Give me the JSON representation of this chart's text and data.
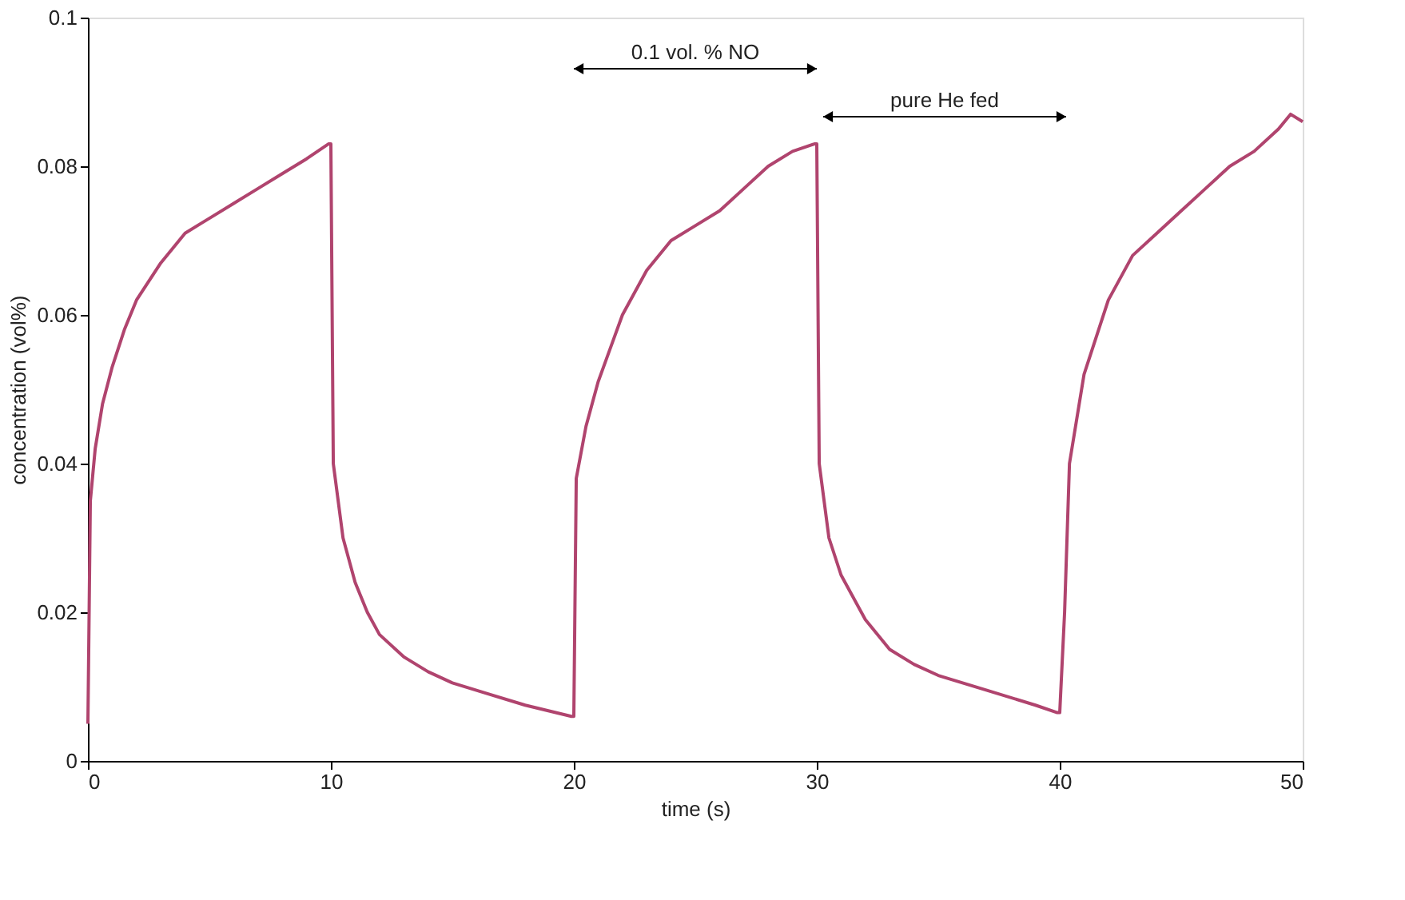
{
  "chart_data": {
    "type": "line",
    "xlabel": "time (s)",
    "ylabel": "concentration (vol%)",
    "x": [
      0,
      0.1,
      0.3,
      0.6,
      1,
      1.5,
      2,
      3,
      4,
      5,
      6,
      7,
      8,
      9,
      9.9,
      10,
      10.1,
      10.5,
      11,
      11.5,
      12,
      13,
      14,
      15,
      16.5,
      18,
      19.9,
      20,
      20.1,
      20.5,
      21,
      22,
      23,
      24,
      25,
      26,
      27,
      28,
      29,
      29.9,
      30,
      30.1,
      30.5,
      31,
      32,
      33,
      34,
      35,
      37,
      39,
      39.9,
      40,
      40.2,
      40.4,
      41,
      42,
      43,
      44,
      45,
      46,
      47,
      48,
      49,
      49.5,
      50
    ],
    "series": [
      {
        "color": "#b0446e",
        "values": [
          0.005,
          0.035,
          0.042,
          0.048,
          0.053,
          0.058,
          0.062,
          0.067,
          0.071,
          0.073,
          0.075,
          0.077,
          0.079,
          0.081,
          0.083,
          0.083,
          0.04,
          0.03,
          0.024,
          0.02,
          0.017,
          0.014,
          0.012,
          0.0105,
          0.009,
          0.0075,
          0.006,
          0.006,
          0.038,
          0.045,
          0.051,
          0.06,
          0.066,
          0.07,
          0.072,
          0.074,
          0.077,
          0.08,
          0.082,
          0.083,
          0.083,
          0.04,
          0.03,
          0.025,
          0.019,
          0.015,
          0.013,
          0.0115,
          0.0095,
          0.0075,
          0.0065,
          0.0065,
          0.02,
          0.04,
          0.052,
          0.062,
          0.068,
          0.071,
          0.074,
          0.077,
          0.08,
          0.082,
          0.085,
          0.087,
          0.086
        ]
      }
    ],
    "xlim": [
      0,
      50
    ],
    "xticks": [
      0,
      10,
      20,
      30,
      40,
      50
    ],
    "ylim": [
      0,
      0.1
    ],
    "yticks": [
      0,
      0.02,
      0.04,
      0.06,
      0.08,
      0.1
    ],
    "grid": false,
    "marker": "none",
    "line_style": "solid",
    "annotations": [
      "0.1 vol. % NO",
      "pure He fed"
    ]
  }
}
